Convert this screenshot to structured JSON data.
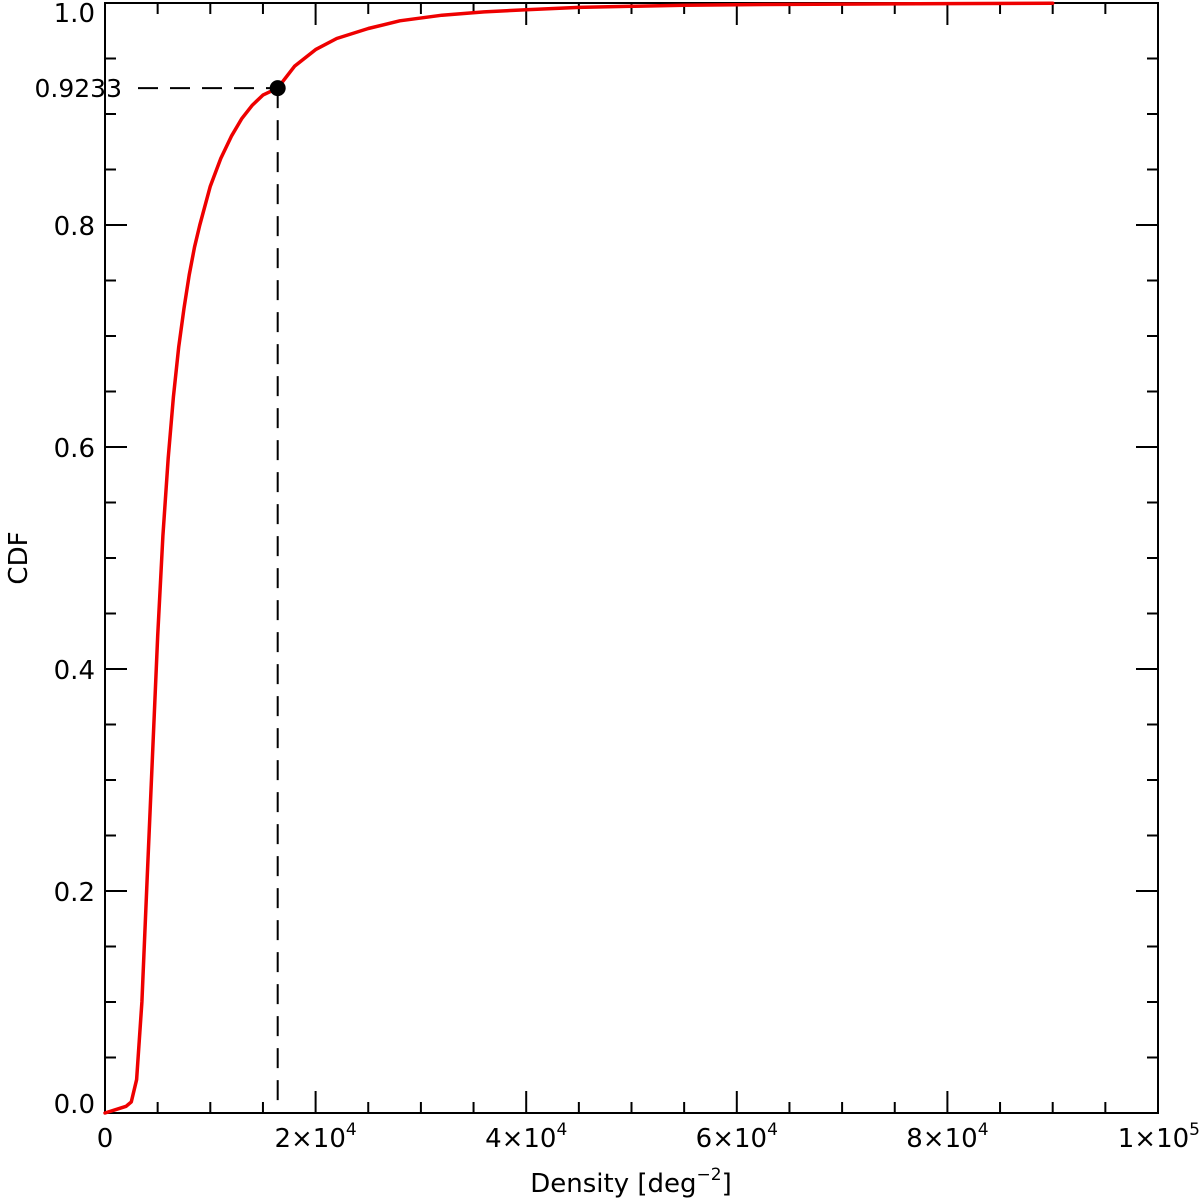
{
  "chart_data": {
    "type": "line",
    "xlabel": "Density [deg",
    "xlabel_sup": "−2",
    "xlabel_close": "]",
    "ylabel": "CDF",
    "xlim": [
      0,
      100000
    ],
    "ylim": [
      0,
      1.0
    ],
    "grid": false,
    "x_ticks": [
      {
        "value": 0,
        "label": "0",
        "exp": ""
      },
      {
        "value": 20000,
        "label": "2×10",
        "exp": "4"
      },
      {
        "value": 40000,
        "label": "4×10",
        "exp": "4"
      },
      {
        "value": 60000,
        "label": "6×10",
        "exp": "4"
      },
      {
        "value": 80000,
        "label": "8×10",
        "exp": "4"
      },
      {
        "value": 100000,
        "label": "1×10",
        "exp": "5"
      }
    ],
    "y_ticks": [
      {
        "value": 0.0,
        "label": "0.0"
      },
      {
        "value": 0.2,
        "label": "0.2"
      },
      {
        "value": 0.4,
        "label": "0.4"
      },
      {
        "value": 0.6,
        "label": "0.6"
      },
      {
        "value": 0.8,
        "label": "0.8"
      },
      {
        "value": 1.0,
        "label": "1.0"
      }
    ],
    "series": [
      {
        "color": "#ee0000",
        "x": [
          0,
          1000,
          2000,
          2500,
          3000,
          3500,
          4000,
          4500,
          5000,
          5500,
          6000,
          6500,
          7000,
          7500,
          8000,
          8500,
          9000,
          10000,
          11000,
          12000,
          13000,
          14000,
          15000,
          16400,
          18000,
          20000,
          22000,
          25000,
          28000,
          32000,
          36000,
          40000,
          45000,
          50000,
          55000,
          60000,
          70000,
          80000,
          90000
        ],
        "y": [
          0.0,
          0.003,
          0.006,
          0.01,
          0.03,
          0.1,
          0.21,
          0.32,
          0.43,
          0.52,
          0.59,
          0.645,
          0.69,
          0.725,
          0.755,
          0.78,
          0.8,
          0.835,
          0.86,
          0.88,
          0.896,
          0.908,
          0.917,
          0.9233,
          0.943,
          0.958,
          0.968,
          0.977,
          0.984,
          0.989,
          0.992,
          0.994,
          0.996,
          0.997,
          0.998,
          0.9985,
          0.999,
          0.9995,
          0.9998
        ]
      }
    ],
    "marker": {
      "x": 16400,
      "y": 0.9233,
      "label": "0.9233"
    }
  }
}
